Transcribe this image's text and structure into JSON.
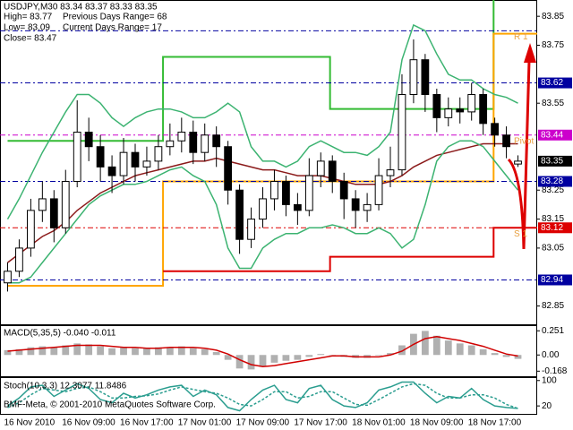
{
  "chart_data": [
    {
      "type": "candlestick",
      "title": "USDJPY,M30 83.34 83.37 83.33 83.35",
      "annotations": [
        "High= 83.77",
        "Previous Days Range= 68",
        "Low= 83.09",
        "Current Days Range= 17",
        "Close= 83.47"
      ],
      "categories": [
        "16 Nov 2010",
        null,
        null,
        null,
        null,
        "16 Nov 09:00",
        null,
        null,
        null,
        null,
        "16 Nov 17:00",
        null,
        null,
        null,
        null,
        "17 Nov 01:00",
        null,
        null,
        null,
        null,
        "17 Nov 09:00",
        null,
        null,
        null,
        null,
        "17 Nov 17:00",
        null,
        null,
        null,
        null,
        "18 Nov 01:00",
        null,
        null,
        null,
        null,
        "18 Nov 09:00",
        null,
        null,
        null,
        null,
        "18 Nov 17:00",
        null,
        null,
        null,
        null
      ],
      "open": [
        82.93,
        82.97,
        83.05,
        83.18,
        83.22,
        83.12,
        83.28,
        83.45,
        83.4,
        83.33,
        83.3,
        83.38,
        83.33,
        83.35,
        83.4,
        83.42,
        83.45,
        83.38,
        83.44,
        83.4,
        83.25,
        83.08,
        83.15,
        83.22,
        83.28,
        83.2,
        83.18,
        83.3,
        83.35,
        83.28,
        83.22,
        83.18,
        83.2,
        83.3,
        83.32,
        83.58,
        83.7,
        83.58,
        83.5,
        83.53,
        83.52,
        83.58,
        83.48,
        83.44,
        83.34
      ],
      "high": [
        83.0,
        83.08,
        83.22,
        83.28,
        83.25,
        83.32,
        83.56,
        83.5,
        83.44,
        83.37,
        83.43,
        83.41,
        83.4,
        83.44,
        83.48,
        83.5,
        83.49,
        83.48,
        83.47,
        83.42,
        83.27,
        83.19,
        83.26,
        83.32,
        83.3,
        83.24,
        83.36,
        83.38,
        83.37,
        83.31,
        83.25,
        83.24,
        83.36,
        83.4,
        83.65,
        83.77,
        83.72,
        83.6,
        83.57,
        83.57,
        83.62,
        83.6,
        83.5,
        83.47,
        83.37
      ],
      "low": [
        82.9,
        82.95,
        83.02,
        83.14,
        83.07,
        83.1,
        83.26,
        83.35,
        83.28,
        83.24,
        83.27,
        83.28,
        83.3,
        83.32,
        83.37,
        83.38,
        83.34,
        83.35,
        83.33,
        83.2,
        83.03,
        83.05,
        83.12,
        83.18,
        83.16,
        83.13,
        83.16,
        83.26,
        83.24,
        83.15,
        83.12,
        83.14,
        83.18,
        83.26,
        83.3,
        83.55,
        83.52,
        83.45,
        83.47,
        83.48,
        83.49,
        83.44,
        83.4,
        83.36,
        83.33
      ],
      "close": [
        82.97,
        83.05,
        83.18,
        83.22,
        83.12,
        83.28,
        83.45,
        83.4,
        83.33,
        83.3,
        83.38,
        83.33,
        83.35,
        83.4,
        83.42,
        83.45,
        83.38,
        83.44,
        83.4,
        83.25,
        83.08,
        83.15,
        83.22,
        83.28,
        83.2,
        83.18,
        83.3,
        83.35,
        83.28,
        83.22,
        83.18,
        83.2,
        83.3,
        83.32,
        83.58,
        83.7,
        83.58,
        83.5,
        83.53,
        83.52,
        83.58,
        83.48,
        83.44,
        83.4,
        83.35
      ],
      "candle_up_color": "#ffffff",
      "candle_down_color": "#000000",
      "last_price_color": "#000000",
      "series": [
        {
          "type": "line",
          "color": "#8b1a1a",
          "values": [
            83.0,
            83.03,
            83.06,
            83.09,
            83.11,
            83.14,
            83.18,
            83.21,
            83.24,
            83.26,
            83.28,
            83.3,
            83.31,
            83.32,
            83.33,
            83.34,
            83.35,
            83.35,
            83.36,
            83.35,
            83.34,
            83.33,
            83.32,
            83.32,
            83.31,
            83.3,
            83.3,
            83.3,
            83.29,
            83.28,
            83.27,
            83.27,
            83.27,
            83.28,
            83.3,
            83.33,
            83.35,
            83.37,
            83.38,
            83.39,
            83.4,
            83.41,
            83.41,
            83.41,
            83.41
          ]
        },
        {
          "type": "line",
          "color": "#3cb371",
          "values": [
            83.15,
            83.22,
            83.3,
            83.38,
            83.45,
            83.52,
            83.58,
            83.58,
            83.55,
            83.5,
            83.47,
            83.5,
            83.52,
            83.53,
            83.53,
            83.52,
            83.5,
            83.5,
            83.52,
            83.55,
            83.52,
            83.4,
            83.35,
            83.35,
            83.33,
            83.35,
            83.4,
            83.42,
            83.4,
            83.38,
            83.38,
            83.37,
            83.4,
            83.45,
            83.7,
            83.82,
            83.8,
            83.72,
            83.65,
            83.63,
            83.63,
            83.6,
            83.58,
            83.57,
            83.55
          ]
        },
        {
          "type": "line",
          "color": "#3cb371",
          "values": [
            82.93,
            82.93,
            82.95,
            83.0,
            83.05,
            83.1,
            83.15,
            83.2,
            83.23,
            83.25,
            83.27,
            83.27,
            83.28,
            83.3,
            83.32,
            83.33,
            83.3,
            83.28,
            83.2,
            83.05,
            82.98,
            82.98,
            83.05,
            83.08,
            83.1,
            83.1,
            83.12,
            83.12,
            83.13,
            83.12,
            83.1,
            83.1,
            83.12,
            83.1,
            83.05,
            83.08,
            83.2,
            83.35,
            83.4,
            83.42,
            83.42,
            83.4,
            83.35,
            83.3,
            83.25
          ]
        }
      ],
      "steps": [
        {
          "color": "#33bb33",
          "x": [
            0,
            13.4,
            27.8,
            41.9
          ],
          "values": [
            83.42,
            83.71,
            83.53,
            84.0
          ]
        },
        {
          "color": "#ffa500",
          "x": [
            0,
            13.4,
            27.8,
            41.9
          ],
          "values": [
            82.92,
            83.28,
            83.28,
            83.79
          ]
        },
        {
          "color": "#dd0000",
          "x": [
            13.4,
            27.8,
            41.9
          ],
          "values": [
            82.97,
            83.02,
            83.12
          ]
        }
      ],
      "levels": [
        {
          "value": 83.8,
          "color": "#0000a0",
          "label": "R 1",
          "label_color": "#e8a040",
          "box": false
        },
        {
          "value": 83.62,
          "color": "#0000a0",
          "box": true
        },
        {
          "value": 83.44,
          "color": "#cc00cc",
          "label": "Pivot",
          "label_color": "#e8a040",
          "box": true
        },
        {
          "value": 83.28,
          "color": "#0000a0",
          "box": true
        },
        {
          "value": 83.12,
          "color": "#dd0000",
          "label": "S 1",
          "label_color": "#e8a040",
          "box": true
        },
        {
          "value": 82.94,
          "color": "#0000a0",
          "box": true
        }
      ],
      "ylim": [
        82.79,
        83.9
      ],
      "yticks": [
        83.85,
        83.75,
        83.55,
        83.25,
        83.15,
        83.05,
        82.85
      ]
    },
    {
      "type": "bar",
      "title": "MACD(5,35,5) -0.040 -0.011",
      "series": [
        {
          "type": "bar",
          "color": "#b0b0b0",
          "values": [
            0.05,
            0.06,
            0.08,
            0.09,
            0.08,
            0.1,
            0.12,
            0.11,
            0.09,
            0.07,
            0.08,
            0.07,
            0.07,
            0.08,
            0.08,
            0.09,
            0.07,
            0.06,
            0.03,
            -0.05,
            -0.14,
            -0.15,
            -0.12,
            -0.08,
            -0.06,
            -0.05,
            -0.02,
            0.01,
            0.0,
            -0.02,
            -0.03,
            -0.03,
            0.0,
            0.02,
            0.1,
            0.22,
            0.25,
            0.2,
            0.15,
            0.12,
            0.1,
            0.06,
            0.02,
            -0.02,
            -0.04
          ]
        },
        {
          "type": "line",
          "color": "#d00000",
          "values": [
            0.04,
            0.05,
            0.06,
            0.07,
            0.08,
            0.09,
            0.1,
            0.1,
            0.1,
            0.09,
            0.08,
            0.08,
            0.07,
            0.07,
            0.08,
            0.08,
            0.08,
            0.07,
            0.05,
            0.01,
            -0.05,
            -0.1,
            -0.12,
            -0.11,
            -0.09,
            -0.07,
            -0.05,
            -0.03,
            -0.01,
            -0.01,
            -0.02,
            -0.02,
            -0.02,
            0.0,
            0.04,
            0.11,
            0.17,
            0.19,
            0.17,
            0.15,
            0.12,
            0.09,
            0.05,
            0.01,
            -0.011
          ]
        }
      ],
      "ylim": [
        -0.23,
        0.3
      ],
      "yticks": [
        0.251,
        {
          "value": 0,
          "label": "0.00"
        },
        -0.168
      ]
    },
    {
      "type": "line",
      "title": "Stoch(10,3,3) 12.3077 11.8486",
      "annotations": [
        "BMF-Meta, © 2001-2010 MetaQuotes Software Corp."
      ],
      "series": [
        {
          "type": "line",
          "color": "#2a9d8f",
          "values": [
            20,
            45,
            80,
            85,
            50,
            70,
            90,
            75,
            40,
            30,
            60,
            45,
            55,
            70,
            80,
            85,
            50,
            70,
            55,
            15,
            5,
            40,
            70,
            85,
            40,
            30,
            75,
            85,
            40,
            20,
            15,
            30,
            70,
            80,
            95,
            95,
            60,
            30,
            50,
            45,
            75,
            40,
            20,
            15,
            12.3077
          ]
        },
        {
          "type": "line",
          "color": "#2a9d8f",
          "dashed": true,
          "values": [
            15,
            30,
            55,
            75,
            70,
            65,
            75,
            80,
            65,
            45,
            45,
            50,
            52,
            58,
            70,
            80,
            72,
            65,
            60,
            45,
            25,
            20,
            40,
            65,
            65,
            45,
            50,
            65,
            65,
            45,
            25,
            22,
            40,
            60,
            80,
            90,
            85,
            60,
            45,
            45,
            55,
            55,
            45,
            25,
            11.8486
          ]
        }
      ],
      "ylim": [
        -5,
        105
      ],
      "yticks": [
        100,
        20
      ]
    }
  ]
}
